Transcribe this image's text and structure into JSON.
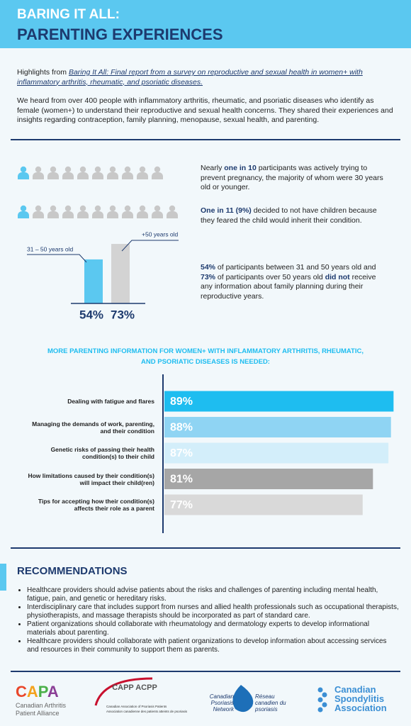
{
  "header": {
    "title_line1": "BARING IT ALL:",
    "title_line2": "PARENTING EXPERIENCES"
  },
  "intro": [
    [
      {
        "text": "Highlights from "
      },
      {
        "text": "Baring It All: Final report from a survey on reproductive and sexual health in women+ with inflammatory arthritis, rheumatic, and psoriatic diseases.",
        "style": "link"
      }
    ],
    [
      {
        "text": "We heard from over 400 people with inflammatory arthritis, rheumatic, and psoriatic diseases who identify as female (women+) to understand their reproductive and sexual health concerns. They shared their experiences and insights regarding contraception, family planning, menopause, sexual health, and parenting."
      }
    ]
  ],
  "icon_rows": [
    {
      "total": 10,
      "highlighted": 1
    },
    {
      "total": 11,
      "highlighted": 1
    }
  ],
  "stats": [
    [
      {
        "text": "Nearly "
      },
      {
        "text": "one in 10",
        "style": "bold"
      },
      {
        "text": " participants was actively trying to prevent pregnancy, the majority of whom were 30 years old or younger."
      }
    ],
    [
      {
        "text": "One in 11 (9%)",
        "style": "bold"
      },
      {
        "text": " decided to not have children because they feared the child would inherit their condition."
      }
    ],
    [
      {
        "text": "54%",
        "style": "bold"
      },
      {
        "text": " of participants between 31 and 50 years old and "
      },
      {
        "text": "73%",
        "style": "bold"
      },
      {
        "text": " of participants over 50 years old "
      },
      {
        "text": "did not",
        "style": "bold"
      },
      {
        "text": " receive any information about family planning during their reproductive years."
      }
    ]
  ],
  "age_chart": {
    "type": "bar",
    "categories": [
      "31 – 50 years old",
      "+50 years old"
    ],
    "values": [
      54,
      73
    ],
    "value_labels": [
      "54%",
      "73%"
    ],
    "colors": [
      "#5bc8f0",
      "#d3d3d3"
    ],
    "ylim": [
      0,
      100
    ]
  },
  "needs_chart": {
    "type": "bar",
    "title": "MORE PARENTING INFORMATION FOR WOMEN+ WITH INFLAMMATORY ARTHRITIS, RHEUMATIC, AND PSORIATIC DISEASES IS NEEDED:",
    "categories": [
      "Dealing with fatigue and flares",
      "Managing the demands of work, parenting, and their condition",
      "Genetic risks of passing their health condition(s) to their child",
      "How limitations caused by their condition(s) will impact their child(ren)",
      "Tips for accepting how their condition(s) affects their role as a parent"
    ],
    "values": [
      89,
      88,
      87,
      81,
      77
    ],
    "value_labels": [
      "89%",
      "88%",
      "87%",
      "81%",
      "77%"
    ],
    "colors": [
      "#1ebdf0",
      "#8fd4f3",
      "#d3eefa",
      "#a6a6a6",
      "#d9d9d9"
    ],
    "xlim": [
      0,
      90
    ]
  },
  "recommendations": {
    "title": "RECOMMENDATIONS",
    "items": [
      "Healthcare providers should advise patients about the risks and challenges of parenting including mental health, fatigue, pain, and genetic or hereditary risks.",
      "Interdisciplinary care that includes support from nurses and allied health professionals such as occupational therapists, physiotherapists, and massage therapists should be incorporated as part of standard care.",
      "Patient organizations should collaborate with rheumatology and dermatology experts to develop informational materials about parenting.",
      "Healthcare providers should collaborate with patient organizations to develop information about accessing services and resources in their community to support them as parents."
    ]
  },
  "logos": {
    "capa": {
      "mark": "CAPA",
      "name": "Canadian Arthritis Patient Alliance"
    },
    "capp": {
      "mark": "CAPP ACPP",
      "name_en": "Canadian Association of Psoriasis Patients",
      "name_fr": "Association canadienne des patients atteints de psoriasis"
    },
    "cpn": {
      "name_en": "Canadian Psoriasis Network",
      "name_fr": "Réseau canadien du psoriasis"
    },
    "csa": {
      "name": "Canadian Spondylitis Association"
    }
  }
}
